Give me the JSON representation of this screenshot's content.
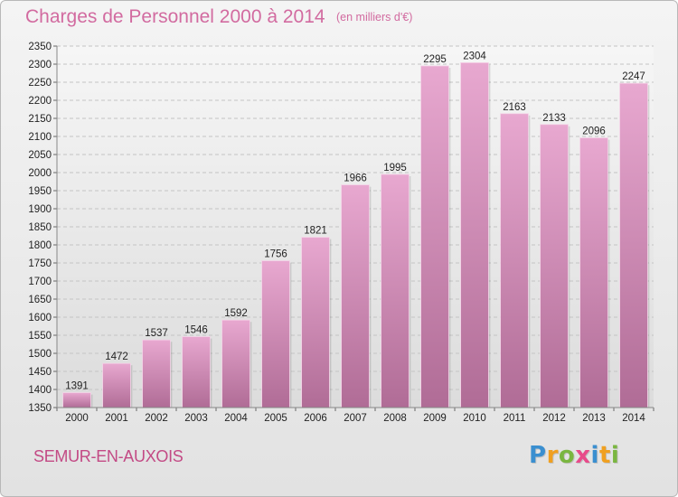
{
  "title": "Charges de Personnel 2000 à 2014",
  "subtitle": "(en milliers d'€)",
  "location": "SEMUR-EN-AUXOIS",
  "logo": {
    "letters": [
      "P",
      "r",
      "o",
      "x",
      "i",
      "t",
      "i"
    ],
    "colors": [
      "#3a8fd0",
      "#f0a020",
      "#7ab640",
      "#e84b8a",
      "#3a8fd0",
      "#f0a020",
      "#7ab640"
    ]
  },
  "colors": {
    "bar_top": "#e8a8d0",
    "bar_bottom": "#b06c96",
    "title": "#d26ba0"
  },
  "chart_data": {
    "type": "bar",
    "categories": [
      "2000",
      "2001",
      "2002",
      "2003",
      "2004",
      "2005",
      "2006",
      "2007",
      "2008",
      "2009",
      "2010",
      "2011",
      "2012",
      "2013",
      "2014"
    ],
    "values": [
      1391,
      1472,
      1537,
      1546,
      1592,
      1756,
      1821,
      1966,
      1995,
      2295,
      2304,
      2163,
      2133,
      2096,
      2247
    ],
    "title": "Charges de Personnel 2000 à 2014",
    "ylim": [
      1350,
      2350
    ],
    "ytick_step": 50,
    "grid": true,
    "data_labels": true
  }
}
